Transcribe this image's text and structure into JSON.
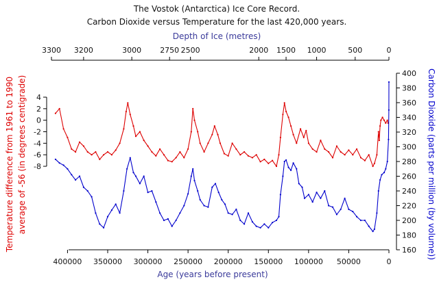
{
  "chart_data": {
    "type": "line",
    "title": "The Vostok (Antarctica) Ice Core Record.",
    "subtitle": "Carbon Dioxide versus Temperature for the last 420,000 years.",
    "x_bottom": {
      "label": "Age (years before present)",
      "range": [
        420000,
        0
      ],
      "ticks": [
        "400000",
        "350000",
        "300000",
        "250000",
        "200000",
        "150000",
        "100000",
        "50000",
        "0"
      ],
      "tick_values": [
        400000,
        350000,
        300000,
        250000,
        200000,
        150000,
        100000,
        50000,
        0
      ],
      "color": "#3a3a9a"
    },
    "x_top": {
      "label": "Depth of Ice (metres)",
      "ticks": [
        "3300",
        "3200",
        "3000",
        "2750",
        "2500",
        "2000",
        "1500",
        "1000",
        "500",
        "0"
      ],
      "tick_ages": [
        420000,
        380000,
        320000,
        273000,
        247000,
        162000,
        128000,
        90000,
        42000,
        0
      ],
      "color": "#3a3a9a"
    },
    "y_left": {
      "label_line1": "Temperature difference from 1961 to 1990",
      "label_line2": "average of -56 (in degrees centigrade)",
      "range": [
        -8,
        4
      ],
      "ticks": [
        "4",
        "2",
        "0",
        "-2",
        "-4",
        "-6",
        "-8"
      ],
      "tick_values": [
        4,
        2,
        0,
        -2,
        -4,
        -6,
        -8
      ],
      "color": "#dd0000"
    },
    "y_right": {
      "label": "Carbon Dioxide (parts per million (by volume))",
      "range": [
        160,
        400
      ],
      "ticks": [
        "400",
        "380",
        "360",
        "340",
        "320",
        "300",
        "280",
        "260",
        "240",
        "220",
        "200",
        "180",
        "160"
      ],
      "tick_values": [
        400,
        380,
        360,
        340,
        320,
        300,
        280,
        260,
        240,
        220,
        200,
        180,
        160
      ],
      "color": "#0000cc"
    },
    "series": [
      {
        "key": "temperature",
        "axis": "left",
        "color": "#dd0000",
        "points": [
          [
            415000,
            1.2
          ],
          [
            410000,
            2.0
          ],
          [
            405000,
            -1.5
          ],
          [
            400000,
            -3.0
          ],
          [
            395000,
            -5.0
          ],
          [
            390000,
            -5.5
          ],
          [
            385000,
            -3.8
          ],
          [
            380000,
            -4.5
          ],
          [
            375000,
            -5.5
          ],
          [
            370000,
            -6.0
          ],
          [
            365000,
            -5.5
          ],
          [
            360000,
            -6.8
          ],
          [
            355000,
            -6.0
          ],
          [
            350000,
            -5.5
          ],
          [
            345000,
            -6.0
          ],
          [
            340000,
            -5.2
          ],
          [
            335000,
            -4.0
          ],
          [
            330000,
            -1.5
          ],
          [
            327000,
            1.5
          ],
          [
            325000,
            3.0
          ],
          [
            322000,
            1.0
          ],
          [
            318000,
            -1.0
          ],
          [
            315000,
            -2.8
          ],
          [
            310000,
            -2.0
          ],
          [
            305000,
            -3.5
          ],
          [
            300000,
            -4.5
          ],
          [
            295000,
            -5.5
          ],
          [
            290000,
            -6.2
          ],
          [
            285000,
            -5.0
          ],
          [
            280000,
            -6.0
          ],
          [
            275000,
            -7.0
          ],
          [
            270000,
            -7.2
          ],
          [
            265000,
            -6.5
          ],
          [
            260000,
            -5.5
          ],
          [
            255000,
            -6.5
          ],
          [
            250000,
            -5.0
          ],
          [
            246000,
            -2.0
          ],
          [
            244000,
            2.0
          ],
          [
            242000,
            0.0
          ],
          [
            238000,
            -2.0
          ],
          [
            235000,
            -4.0
          ],
          [
            230000,
            -5.5
          ],
          [
            225000,
            -4.0
          ],
          [
            220000,
            -2.5
          ],
          [
            217000,
            -1.0
          ],
          [
            213000,
            -2.5
          ],
          [
            210000,
            -4.0
          ],
          [
            205000,
            -5.8
          ],
          [
            200000,
            -6.2
          ],
          [
            195000,
            -4.0
          ],
          [
            190000,
            -5.0
          ],
          [
            185000,
            -6.0
          ],
          [
            180000,
            -5.5
          ],
          [
            175000,
            -6.2
          ],
          [
            170000,
            -6.5
          ],
          [
            165000,
            -6.0
          ],
          [
            160000,
            -7.2
          ],
          [
            155000,
            -6.8
          ],
          [
            150000,
            -7.5
          ],
          [
            145000,
            -7.0
          ],
          [
            140000,
            -8.0
          ],
          [
            137000,
            -6.0
          ],
          [
            135000,
            -3.0
          ],
          [
            132000,
            1.0
          ],
          [
            130000,
            3.0
          ],
          [
            128000,
            1.5
          ],
          [
            125000,
            0.5
          ],
          [
            122000,
            -1.0
          ],
          [
            119000,
            -2.5
          ],
          [
            115000,
            -4.0
          ],
          [
            110000,
            -1.5
          ],
          [
            106000,
            -3.0
          ],
          [
            103000,
            -1.8
          ],
          [
            100000,
            -4.0
          ],
          [
            95000,
            -5.0
          ],
          [
            90000,
            -5.5
          ],
          [
            85000,
            -3.5
          ],
          [
            80000,
            -5.0
          ],
          [
            75000,
            -5.5
          ],
          [
            70000,
            -6.5
          ],
          [
            65000,
            -4.5
          ],
          [
            60000,
            -5.5
          ],
          [
            55000,
            -6.0
          ],
          [
            50000,
            -5.2
          ],
          [
            45000,
            -6.0
          ],
          [
            40000,
            -5.0
          ],
          [
            35000,
            -6.5
          ],
          [
            30000,
            -7.0
          ],
          [
            25000,
            -6.0
          ],
          [
            20000,
            -8.0
          ],
          [
            18000,
            -7.5
          ],
          [
            15000,
            -6.0
          ],
          [
            13000,
            -2.0
          ],
          [
            12000,
            -3.5
          ],
          [
            11000,
            -1.0
          ],
          [
            10000,
            0.0
          ],
          [
            8000,
            0.5
          ],
          [
            6000,
            0.0
          ],
          [
            4000,
            -0.5
          ],
          [
            2000,
            0.0
          ],
          [
            1000,
            -0.5
          ]
        ]
      },
      {
        "key": "co2",
        "axis": "right",
        "color": "#0000cc",
        "points": [
          [
            415000,
            283
          ],
          [
            410000,
            278
          ],
          [
            405000,
            275
          ],
          [
            400000,
            270
          ],
          [
            395000,
            262
          ],
          [
            390000,
            255
          ],
          [
            385000,
            260
          ],
          [
            380000,
            245
          ],
          [
            375000,
            240
          ],
          [
            370000,
            232
          ],
          [
            365000,
            210
          ],
          [
            360000,
            195
          ],
          [
            355000,
            190
          ],
          [
            350000,
            205
          ],
          [
            345000,
            214
          ],
          [
            340000,
            222
          ],
          [
            335000,
            210
          ],
          [
            330000,
            240
          ],
          [
            326000,
            270
          ],
          [
            322000,
            285
          ],
          [
            318000,
            265
          ],
          [
            315000,
            260
          ],
          [
            310000,
            250
          ],
          [
            305000,
            260
          ],
          [
            300000,
            238
          ],
          [
            295000,
            240
          ],
          [
            290000,
            225
          ],
          [
            285000,
            210
          ],
          [
            280000,
            200
          ],
          [
            275000,
            202
          ],
          [
            270000,
            192
          ],
          [
            265000,
            200
          ],
          [
            260000,
            210
          ],
          [
            255000,
            220
          ],
          [
            250000,
            236
          ],
          [
            246000,
            260
          ],
          [
            244000,
            270
          ],
          [
            242000,
            254
          ],
          [
            238000,
            240
          ],
          [
            235000,
            228
          ],
          [
            230000,
            220
          ],
          [
            225000,
            218
          ],
          [
            220000,
            245
          ],
          [
            216000,
            250
          ],
          [
            212000,
            238
          ],
          [
            208000,
            228
          ],
          [
            204000,
            222
          ],
          [
            200000,
            210
          ],
          [
            195000,
            208
          ],
          [
            190000,
            215
          ],
          [
            185000,
            200
          ],
          [
            180000,
            195
          ],
          [
            175000,
            210
          ],
          [
            170000,
            198
          ],
          [
            165000,
            192
          ],
          [
            160000,
            190
          ],
          [
            155000,
            195
          ],
          [
            150000,
            190
          ],
          [
            145000,
            197
          ],
          [
            140000,
            200
          ],
          [
            137000,
            205
          ],
          [
            135000,
            235
          ],
          [
            132000,
            260
          ],
          [
            130000,
            280
          ],
          [
            128000,
            282
          ],
          [
            125000,
            272
          ],
          [
            122000,
            268
          ],
          [
            119000,
            278
          ],
          [
            115000,
            270
          ],
          [
            112000,
            250
          ],
          [
            108000,
            245
          ],
          [
            105000,
            230
          ],
          [
            100000,
            235
          ],
          [
            95000,
            225
          ],
          [
            90000,
            238
          ],
          [
            85000,
            230
          ],
          [
            80000,
            240
          ],
          [
            75000,
            220
          ],
          [
            70000,
            218
          ],
          [
            65000,
            208
          ],
          [
            60000,
            215
          ],
          [
            55000,
            230
          ],
          [
            50000,
            215
          ],
          [
            45000,
            212
          ],
          [
            40000,
            205
          ],
          [
            35000,
            200
          ],
          [
            30000,
            200
          ],
          [
            25000,
            192
          ],
          [
            20000,
            185
          ],
          [
            18000,
            188
          ],
          [
            15000,
            210
          ],
          [
            13000,
            240
          ],
          [
            11000,
            255
          ],
          [
            9000,
            262
          ],
          [
            6000,
            265
          ],
          [
            4000,
            270
          ],
          [
            2000,
            280
          ],
          [
            500,
            310
          ],
          [
            100,
            350
          ],
          [
            0,
            388
          ]
        ]
      }
    ]
  }
}
